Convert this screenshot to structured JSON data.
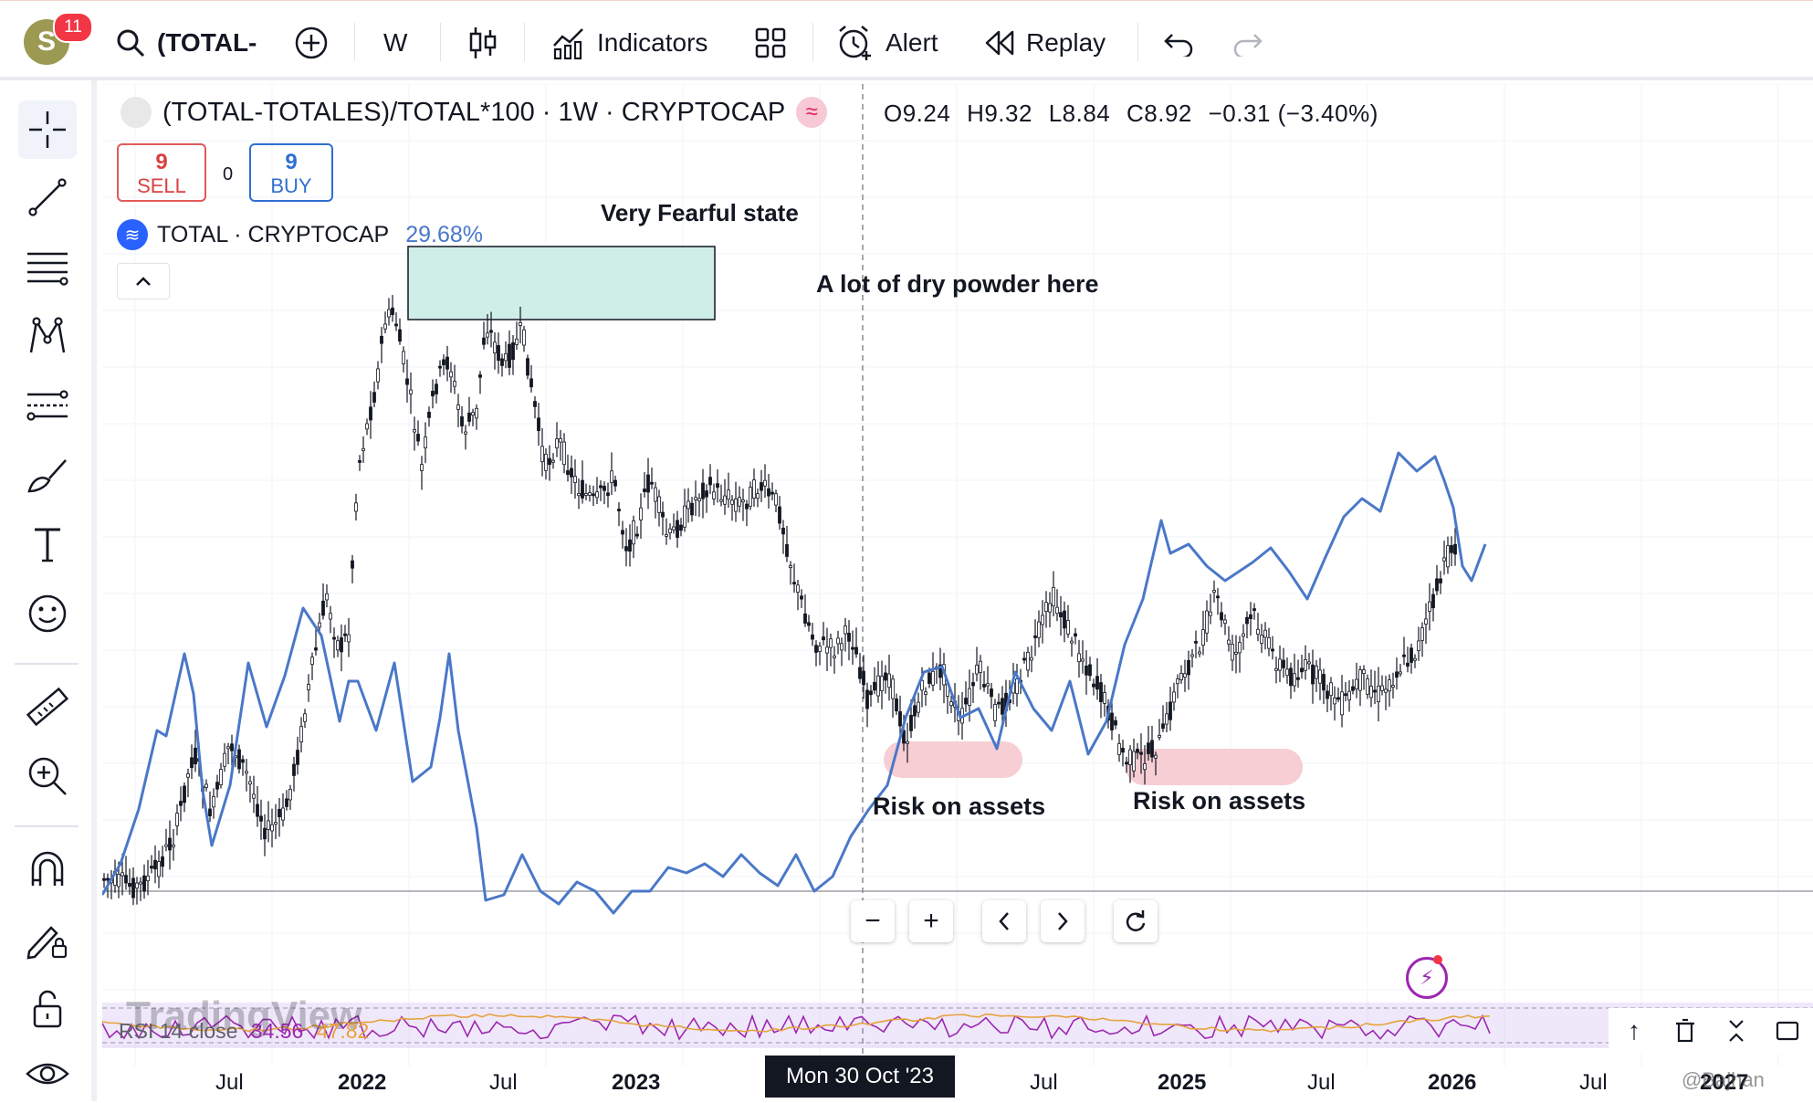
{
  "header": {
    "avatar_letter": "S",
    "notifications": "11",
    "symbol": "(TOTAL-",
    "interval": "W",
    "indicators": "Indicators",
    "alert": "Alert",
    "replay": "Replay"
  },
  "legend": {
    "title": "(TOTAL-TOTALES)/TOTAL*100 · 1W · CRYPTOCAP",
    "open": "O9.24",
    "high": "H9.32",
    "low": "L8.84",
    "close": "C8.92",
    "change": "−0.31 (−3.40%)",
    "sell_price": "9",
    "sell_label": "SELL",
    "spread": "0",
    "buy_price": "9",
    "buy_label": "BUY",
    "compare_symbol": "TOTAL · CRYPTOCAP",
    "compare_value": "29.68%"
  },
  "annotations": {
    "fearful": "Very Fearful state",
    "dry_powder": "A lot of dry powder here",
    "risk_on_1": "Risk on assets",
    "risk_on_2": "Risk on assets"
  },
  "time_axis": {
    "ticks": [
      "Jul",
      "2022",
      "Jul",
      "2023",
      "Jul",
      "2025",
      "Jul",
      "2026",
      "Jul",
      "2027"
    ],
    "cursor_label": "Mon 30 Oct '23"
  },
  "rsi": {
    "label": "RSI 14 close",
    "value1": "34.56",
    "value2": "47.82"
  },
  "watermark": "TradingView",
  "signature": "@Bajhan",
  "colors": {
    "candle": "#131722",
    "compare_line": "#4a78c8",
    "zone_fill": "#cfeee7",
    "risk_fill": "#f5c6cc",
    "sell": "#d94040",
    "buy": "#2f6fd1"
  }
}
